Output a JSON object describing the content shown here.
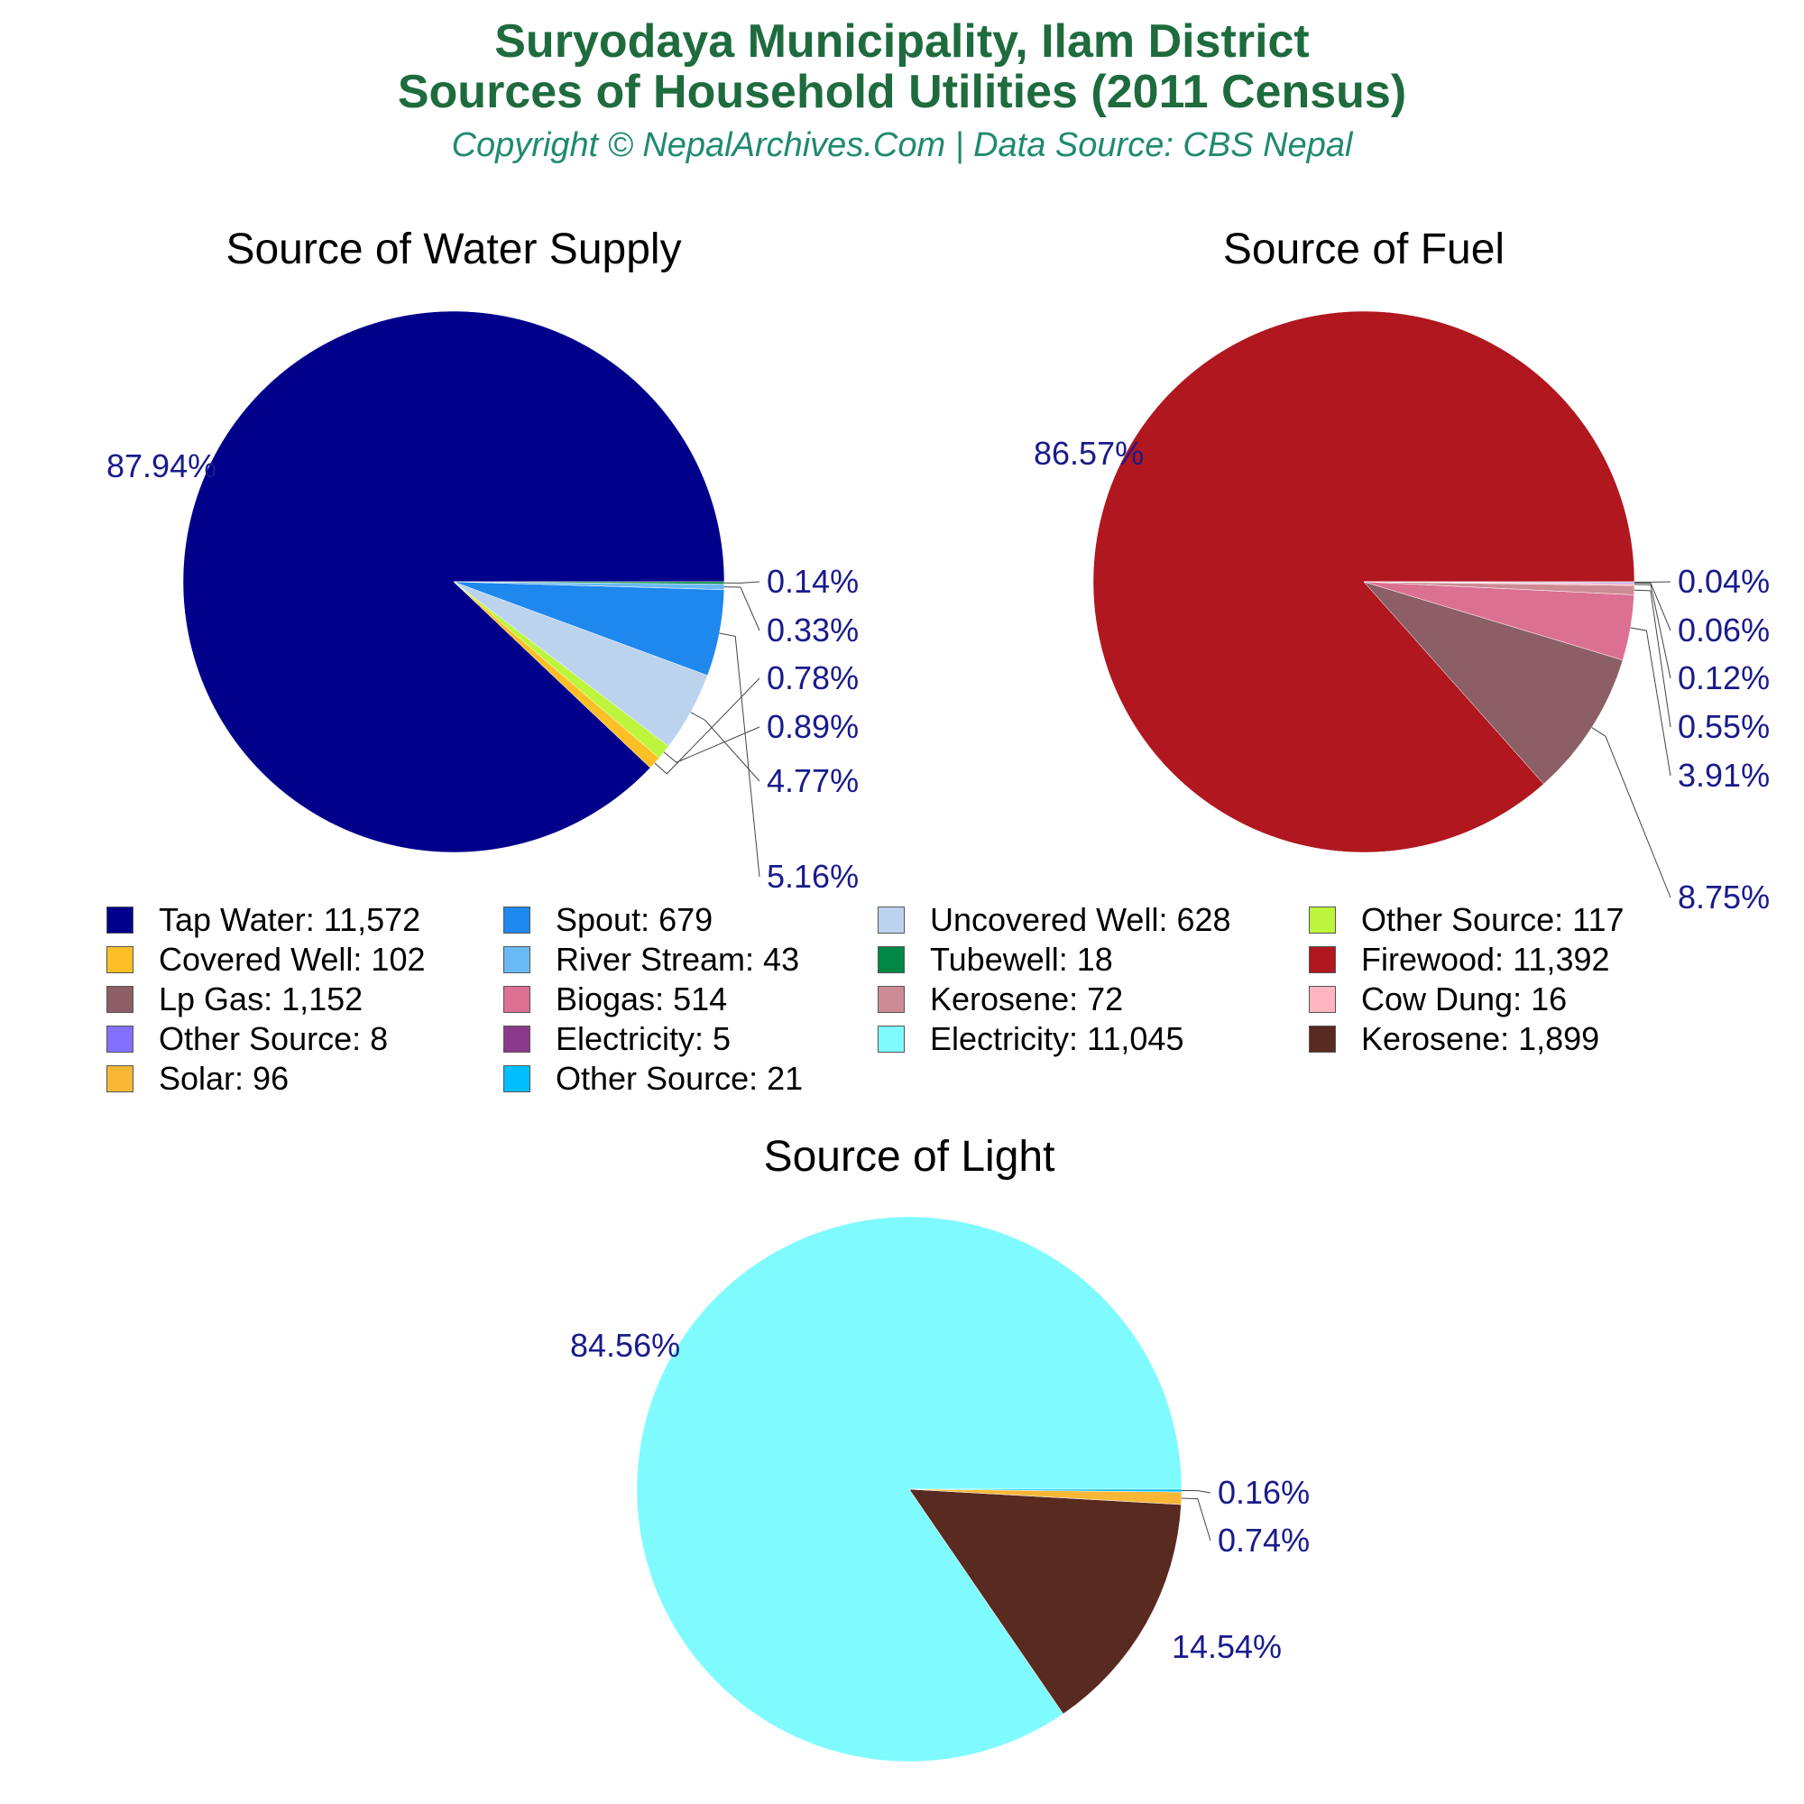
{
  "header": {
    "title_line1": "Suryodaya Municipality, Ilam District",
    "title_line2": "Sources of Household Utilities (2011 Census)",
    "subtitle": "Copyright © NepalArchives.Com | Data Source: CBS Nepal"
  },
  "chart_data": [
    {
      "type": "pie",
      "title": "Source of Water Supply",
      "slices": [
        {
          "name": "Tap Water",
          "value": 11572,
          "label": "87.94%",
          "color": "#00008b"
        },
        {
          "name": "Covered Well",
          "value": 102,
          "label": "0.78%",
          "color": "#fdbf26"
        },
        {
          "name": "Other Source",
          "value": 117,
          "label": "0.89%",
          "color": "#bdf53c"
        },
        {
          "name": "Uncovered Well",
          "value": 628,
          "label": "4.77%",
          "color": "#bcd3ee"
        },
        {
          "name": "Spout",
          "value": 679,
          "label": "5.16%",
          "color": "#1e88ef"
        },
        {
          "name": "River Stream",
          "value": 43,
          "label": "0.33%",
          "color": "#6bbaf8"
        },
        {
          "name": "Tubewell",
          "value": 18,
          "label": "0.14%",
          "color": "#008744"
        }
      ]
    },
    {
      "type": "pie",
      "title": "Source of Fuel",
      "slices": [
        {
          "name": "Firewood",
          "value": 11392,
          "label": "86.57%",
          "color": "#b0171f"
        },
        {
          "name": "Lp Gas",
          "value": 1152,
          "label": "8.75%",
          "color": "#8b5f65"
        },
        {
          "name": "Biogas",
          "value": 514,
          "label": "3.91%",
          "color": "#db7093"
        },
        {
          "name": "Kerosene",
          "value": 72,
          "label": "0.55%",
          "color": "#cd8c95"
        },
        {
          "name": "Cow Dung",
          "value": 16,
          "label": "0.12%",
          "color": "#ffb6c1"
        },
        {
          "name": "Other Source",
          "value": 8,
          "label": "0.06%",
          "color": "#8470ff"
        },
        {
          "name": "Electricity",
          "value": 5,
          "label": "0.04%",
          "color": "#8b3a8b"
        }
      ]
    },
    {
      "type": "pie",
      "title": "Source of Light",
      "slices": [
        {
          "name": "Electricity",
          "value": 11045,
          "label": "84.56%",
          "color": "#7ffbff"
        },
        {
          "name": "Kerosene",
          "value": 1899,
          "label": "14.54%",
          "color": "#582a20"
        },
        {
          "name": "Solar",
          "value": 96,
          "label": "0.74%",
          "color": "#f8b736"
        },
        {
          "name": "Other Source",
          "value": 21,
          "label": "0.16%",
          "color": "#00bfff"
        }
      ]
    }
  ],
  "legend": [
    {
      "text": "Tap Water: 11,572",
      "color": "#00008b"
    },
    {
      "text": "Spout: 679",
      "color": "#1e88ef"
    },
    {
      "text": "Uncovered Well: 628",
      "color": "#bcd3ee"
    },
    {
      "text": "Other Source: 117",
      "color": "#bdf53c"
    },
    {
      "text": "Covered Well: 102",
      "color": "#fdbf26"
    },
    {
      "text": "River Stream: 43",
      "color": "#6bbaf8"
    },
    {
      "text": "Tubewell: 18",
      "color": "#008744"
    },
    {
      "text": "Firewood: 11,392",
      "color": "#b0171f"
    },
    {
      "text": "Lp Gas: 1,152",
      "color": "#8b5f65"
    },
    {
      "text": "Biogas: 514",
      "color": "#db7093"
    },
    {
      "text": "Kerosene: 72",
      "color": "#cd8c95"
    },
    {
      "text": "Cow Dung: 16",
      "color": "#ffb6c1"
    },
    {
      "text": "Other Source: 8",
      "color": "#8470ff"
    },
    {
      "text": "Electricity: 5",
      "color": "#8b3a8b"
    },
    {
      "text": "Electricity: 11,045",
      "color": "#7ffbff"
    },
    {
      "text": "Kerosene: 1,899",
      "color": "#582a20"
    },
    {
      "text": "Solar: 96",
      "color": "#f8b736"
    },
    {
      "text": "Other Source: 21",
      "color": "#00bfff"
    }
  ]
}
